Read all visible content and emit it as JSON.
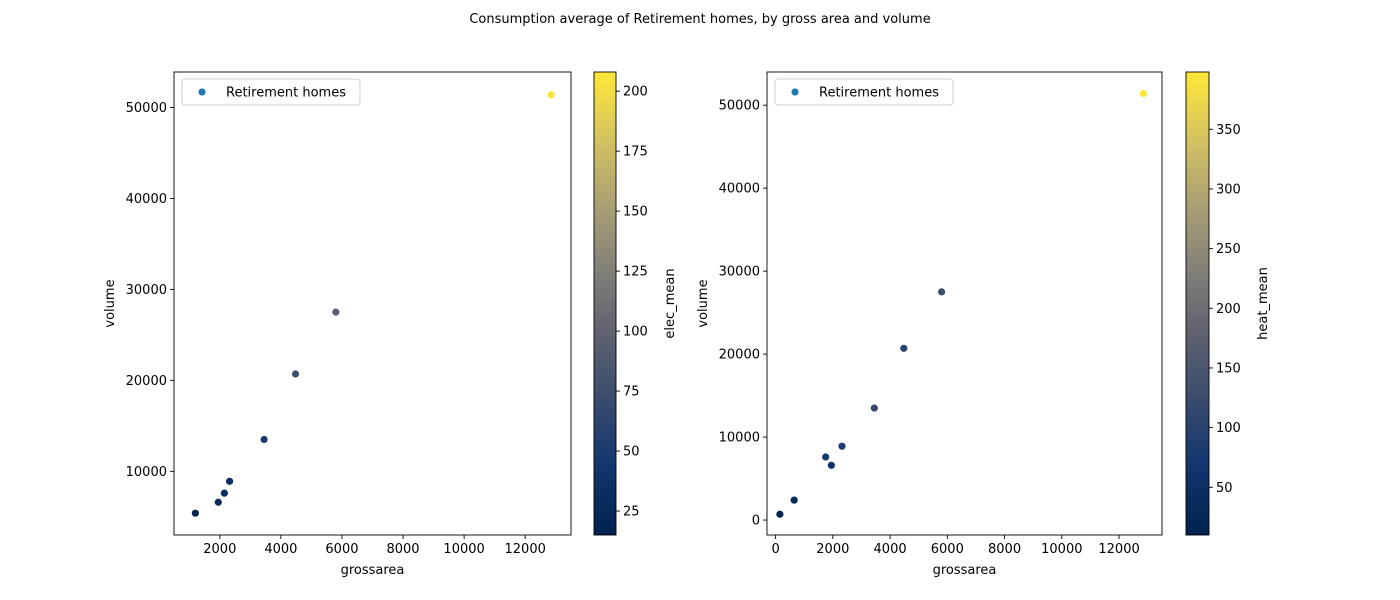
{
  "figure": {
    "title": "Consumption average of Retirement homes, by gross area and volume"
  },
  "chart_data": [
    {
      "type": "scatter",
      "xlabel": "grossarea",
      "ylabel": "volume",
      "xlim": [
        500,
        13500
      ],
      "ylim": [
        3000,
        53900
      ],
      "xticks": [
        2000,
        4000,
        6000,
        8000,
        10000,
        12000
      ],
      "yticks": [
        10000,
        20000,
        30000,
        40000,
        50000
      ],
      "legend": {
        "label": "Retirement homes",
        "placement": "upper-left",
        "marker_color": "#1f77b4"
      },
      "colorbar": {
        "label": "elec_mean",
        "colormap": "cividis",
        "range": [
          15,
          208
        ],
        "ticks": [
          25,
          50,
          75,
          100,
          125,
          150,
          175,
          200
        ]
      },
      "series": [
        {
          "name": "Retirement homes",
          "points": [
            {
              "x": 1200,
              "y": 5400,
              "c": 18
            },
            {
              "x": 1950,
              "y": 6600,
              "c": 28
            },
            {
              "x": 2150,
              "y": 7600,
              "c": 30
            },
            {
              "x": 2320,
              "y": 8900,
              "c": 32
            },
            {
              "x": 3450,
              "y": 13500,
              "c": 48
            },
            {
              "x": 4480,
              "y": 20700,
              "c": 75
            },
            {
              "x": 5800,
              "y": 27500,
              "c": 95
            },
            {
              "x": 12850,
              "y": 51400,
              "c": 205
            }
          ]
        }
      ]
    },
    {
      "type": "scatter",
      "xlabel": "grossarea",
      "ylabel": "volume",
      "xlim": [
        -300,
        13500
      ],
      "ylim": [
        -1800,
        54000
      ],
      "xticks": [
        0,
        2000,
        4000,
        6000,
        8000,
        10000,
        12000
      ],
      "yticks": [
        0,
        10000,
        20000,
        30000,
        40000,
        50000
      ],
      "legend": {
        "label": "Retirement homes",
        "placement": "upper-left",
        "marker_color": "#1f77b4"
      },
      "colorbar": {
        "label": "heat_mean",
        "colormap": "cividis",
        "range": [
          10,
          398
        ],
        "ticks": [
          50,
          100,
          150,
          200,
          250,
          300,
          350
        ]
      },
      "series": [
        {
          "name": "Retirement homes",
          "points": [
            {
              "x": 150,
              "y": 700,
              "c": 15
            },
            {
              "x": 650,
              "y": 2400,
              "c": 30
            },
            {
              "x": 1750,
              "y": 7600,
              "c": 70
            },
            {
              "x": 1950,
              "y": 6600,
              "c": 60
            },
            {
              "x": 2320,
              "y": 8900,
              "c": 85
            },
            {
              "x": 3450,
              "y": 13500,
              "c": 115
            },
            {
              "x": 4480,
              "y": 20700,
              "c": 100
            },
            {
              "x": 5800,
              "y": 27500,
              "c": 130
            },
            {
              "x": 12850,
              "y": 51400,
              "c": 395
            }
          ]
        }
      ]
    }
  ]
}
